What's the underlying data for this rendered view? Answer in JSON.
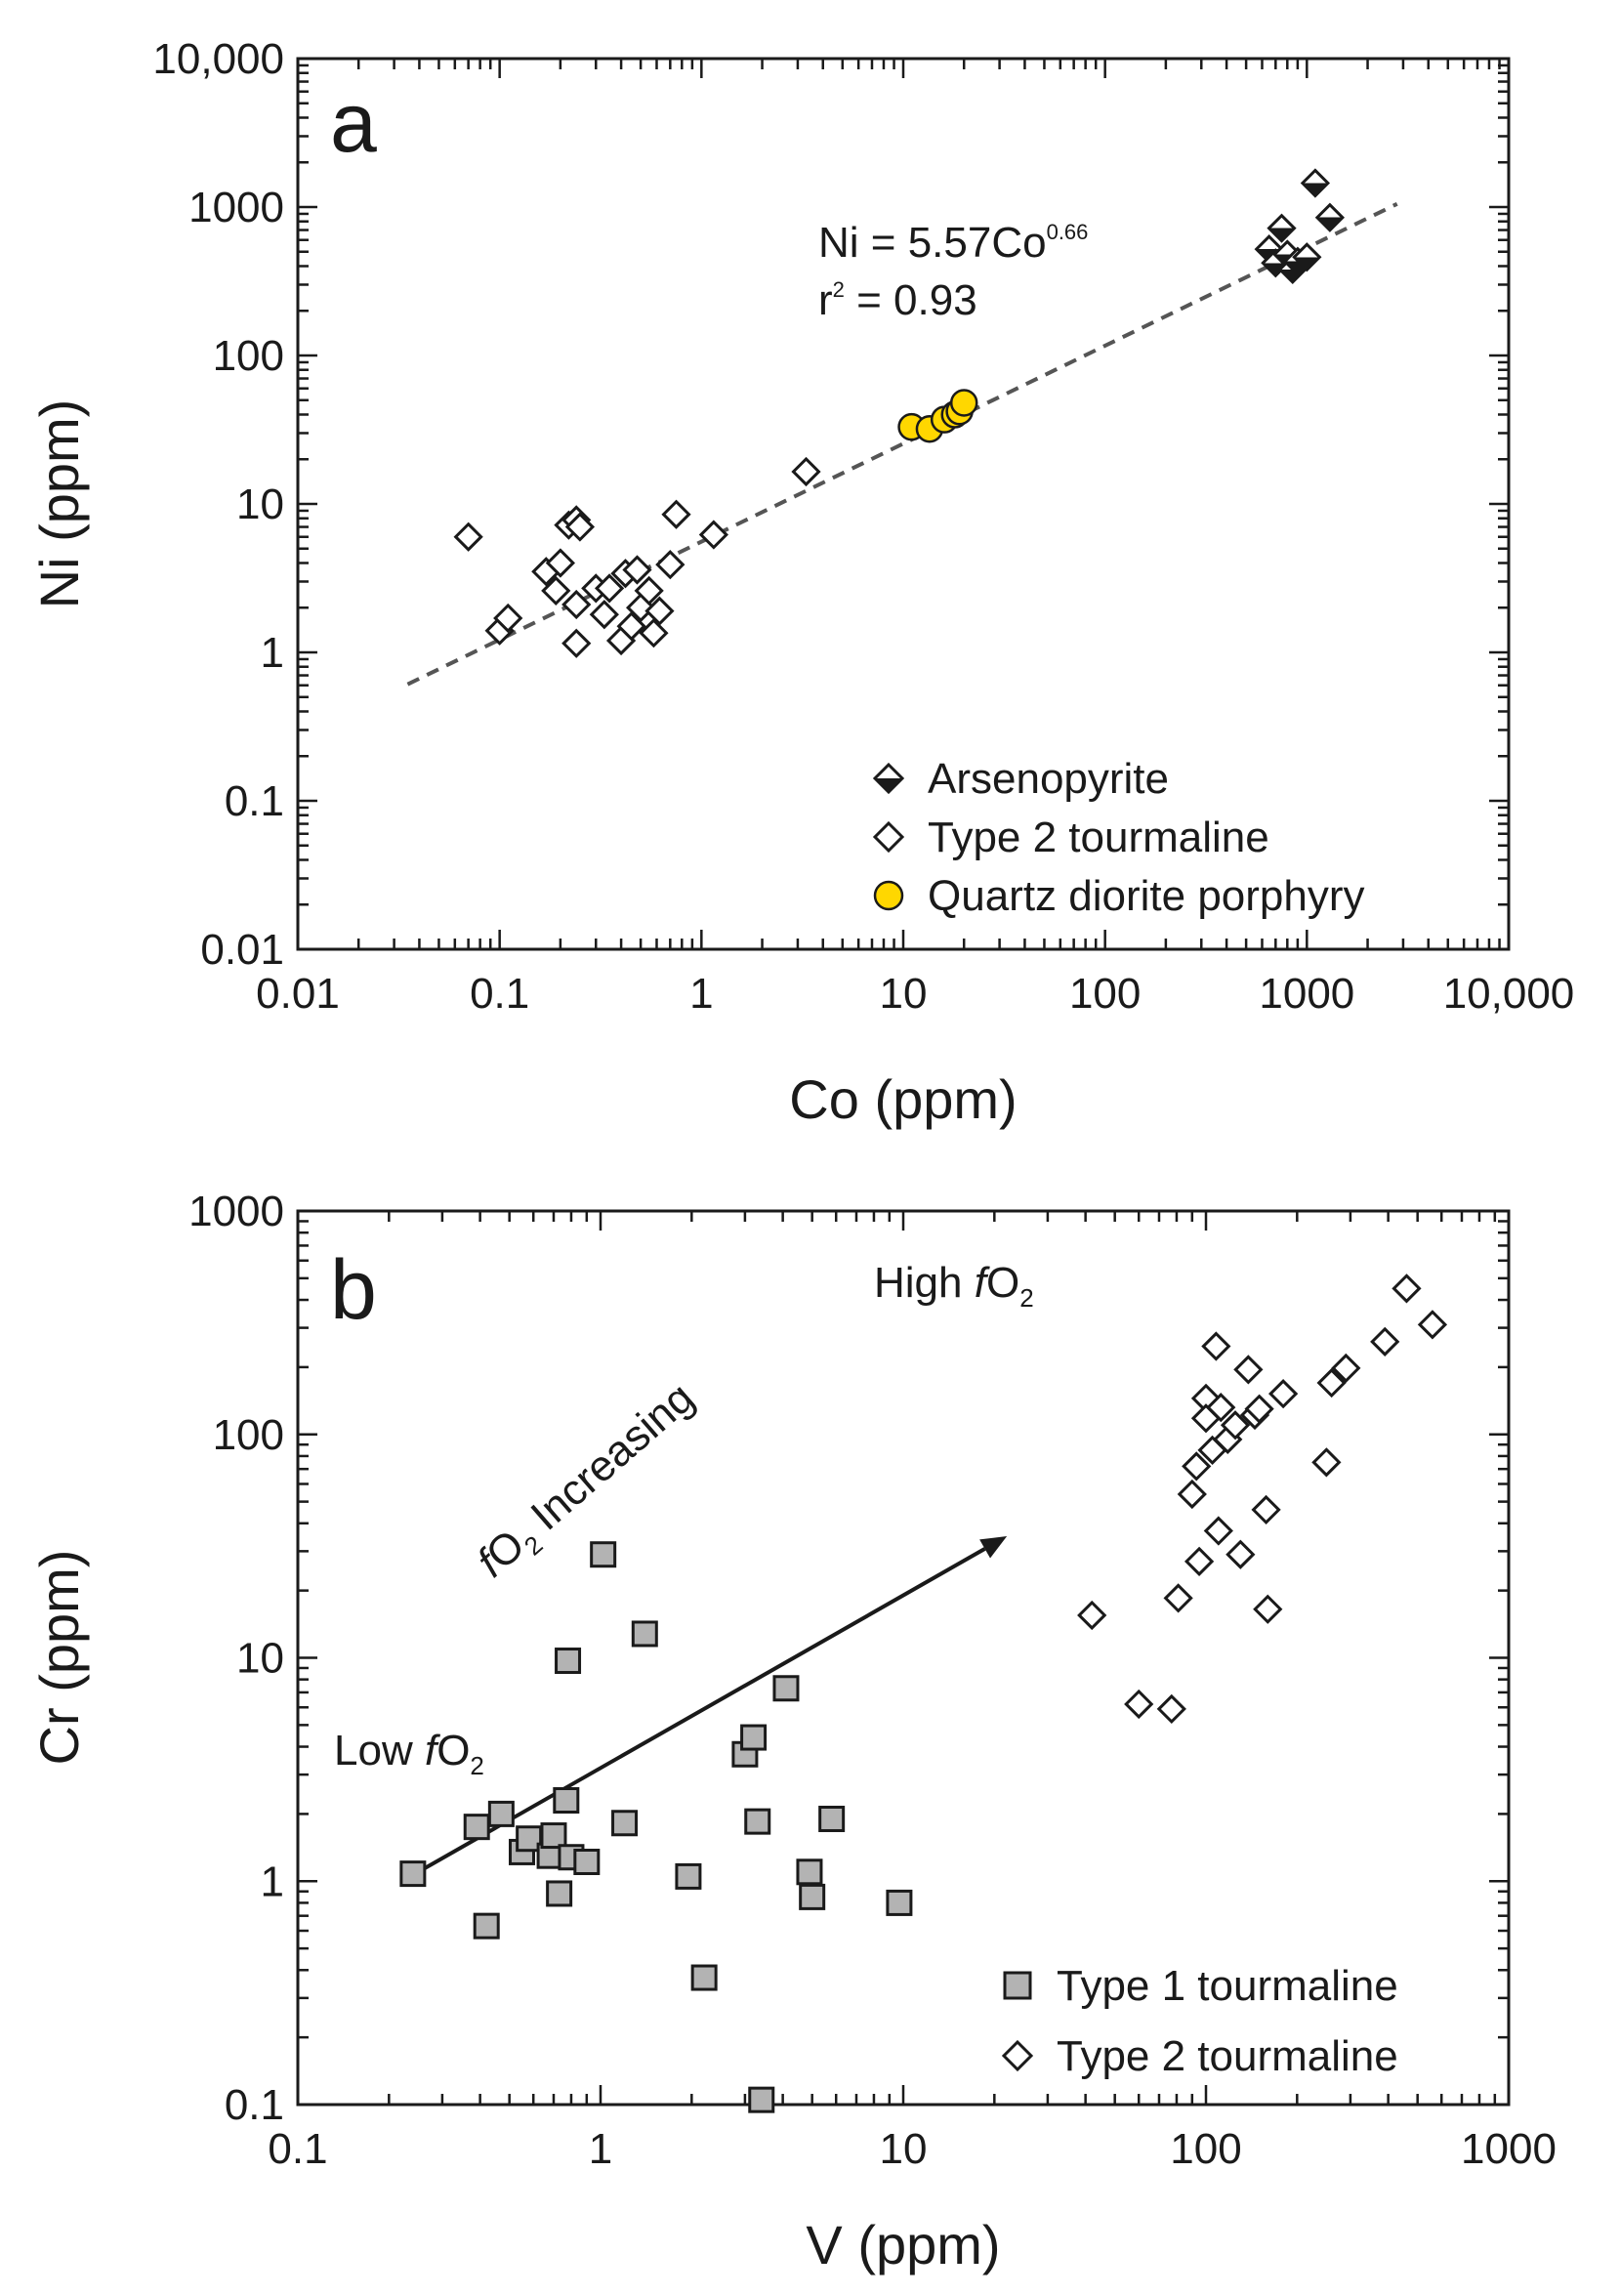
{
  "chart_data": [
    {
      "panel": "a",
      "type": "scatter",
      "xscale": "log",
      "yscale": "log",
      "xlabel": "Co (ppm)",
      "ylabel": "Ni (ppm)",
      "xlim": [
        0.01,
        10000
      ],
      "ylim": [
        0.01,
        10000
      ],
      "xticks": [
        0.01,
        0.1,
        1,
        10,
        100,
        1000,
        10000
      ],
      "xtick_labels": [
        "0.01",
        "0.1",
        "1",
        "10",
        "100",
        "1000",
        "10,000"
      ],
      "yticks": [
        0.01,
        0.1,
        1,
        10,
        100,
        1000,
        10000
      ],
      "ytick_labels": [
        "0.01",
        "0.1",
        "1",
        "10",
        "100",
        "1000",
        "10,000"
      ],
      "fit": {
        "equation_prefix": "Ni = 5.57Co",
        "exponent": "0.66",
        "r2_label": "r",
        "r2_sup": "2",
        "r2_value": " = 0.93",
        "a": 5.57,
        "b": 0.66,
        "x_range": [
          0.035,
          2800
        ]
      },
      "legend": {
        "position": "bottom-right",
        "entries": [
          {
            "label": "Arsenopyrite",
            "marker": "half-diamond"
          },
          {
            "label": "Type 2 tourmaline",
            "marker": "open-diamond"
          },
          {
            "label": "Quartz diorite porphyry",
            "marker": "yellow-circle"
          }
        ]
      },
      "series": [
        {
          "name": "Arsenopyrite",
          "marker": "half-diamond",
          "points": [
            [
              1100,
              1450
            ],
            [
              1300,
              850
            ],
            [
              750,
              720
            ],
            [
              650,
              520
            ],
            [
              700,
              420
            ],
            [
              800,
              480
            ],
            [
              850,
              380
            ],
            [
              900,
              430
            ],
            [
              1000,
              460
            ]
          ]
        },
        {
          "name": "Type 2 tourmaline",
          "marker": "open-diamond",
          "points": [
            [
              0.07,
              6
            ],
            [
              0.1,
              1.4
            ],
            [
              0.11,
              1.7
            ],
            [
              0.17,
              3.5
            ],
            [
              0.19,
              2.6
            ],
            [
              0.2,
              4
            ],
            [
              0.22,
              7.2
            ],
            [
              0.24,
              7.8
            ],
            [
              0.25,
              7
            ],
            [
              0.24,
              2.1
            ],
            [
              0.24,
              1.15
            ],
            [
              0.3,
              2.7
            ],
            [
              0.33,
              1.8
            ],
            [
              0.35,
              2.7
            ],
            [
              0.4,
              1.2
            ],
            [
              0.42,
              3.4
            ],
            [
              0.45,
              1.5
            ],
            [
              0.48,
              3.6
            ],
            [
              0.5,
              2
            ],
            [
              0.55,
              2.6
            ],
            [
              0.58,
              1.35
            ],
            [
              0.62,
              1.9
            ],
            [
              0.7,
              3.9
            ],
            [
              0.75,
              8.5
            ],
            [
              1.15,
              6.2
            ],
            [
              3.3,
              16.5
            ]
          ]
        },
        {
          "name": "Quartz diorite porphyry",
          "marker": "yellow-circle",
          "points": [
            [
              11,
              33
            ],
            [
              13.5,
              32
            ],
            [
              16,
              37
            ],
            [
              18,
              40
            ],
            [
              19,
              42
            ],
            [
              20,
              48
            ]
          ]
        }
      ]
    },
    {
      "panel": "b",
      "type": "scatter",
      "xscale": "log",
      "yscale": "log",
      "xlabel": "V (ppm)",
      "ylabel": "Cr (ppm)",
      "xlim": [
        0.1,
        1000
      ],
      "ylim": [
        0.1,
        1000
      ],
      "xticks": [
        0.1,
        1,
        10,
        100,
        1000
      ],
      "xtick_labels": [
        "0.1",
        "1",
        "10",
        "100",
        "1000"
      ],
      "yticks": [
        0.1,
        1,
        10,
        100,
        1000
      ],
      "ytick_labels": [
        "0.1",
        "1",
        "10",
        "100",
        "1000"
      ],
      "annotations": {
        "low": {
          "prefix": "Low ",
          "f": "f",
          "o": "O",
          "sub": "2"
        },
        "high": {
          "prefix": "High ",
          "f": "f",
          "o": "O",
          "sub": "2"
        },
        "increasing": {
          "f": "f",
          "o": "O",
          "sub": "2",
          "suffix": " Increasing"
        },
        "arrow_from": [
          0.25,
          1.1
        ],
        "arrow_to": [
          22,
          35
        ]
      },
      "legend": {
        "position": "bottom-right",
        "entries": [
          {
            "label": "Type 1 tourmaline",
            "marker": "gray-square"
          },
          {
            "label": "Type 2 tourmaline",
            "marker": "open-diamond"
          }
        ]
      },
      "series": [
        {
          "name": "Type 1 tourmaline",
          "marker": "gray-square",
          "points": [
            [
              0.24,
              1.08
            ],
            [
              0.39,
              1.75
            ],
            [
              0.42,
              0.63
            ],
            [
              0.47,
              2
            ],
            [
              0.55,
              1.35
            ],
            [
              0.58,
              1.55
            ],
            [
              0.68,
              1.3
            ],
            [
              0.7,
              1.6
            ],
            [
              0.73,
              0.88
            ],
            [
              0.77,
              2.3
            ],
            [
              0.78,
              9.7
            ],
            [
              0.8,
              1.28
            ],
            [
              0.9,
              1.22
            ],
            [
              1.02,
              29
            ],
            [
              1.2,
              1.82
            ],
            [
              1.4,
              12.8
            ],
            [
              1.95,
              1.05
            ],
            [
              2.2,
              0.37
            ],
            [
              3,
              3.7
            ],
            [
              3.2,
              4.4
            ],
            [
              3.3,
              1.85
            ],
            [
              3.4,
              0.105
            ],
            [
              4.1,
              7.3
            ],
            [
              4.9,
              1.1
            ],
            [
              5,
              0.85
            ],
            [
              5.8,
              1.9
            ],
            [
              9.7,
              0.8
            ]
          ]
        },
        {
          "name": "Type 2 tourmaline",
          "marker": "open-diamond",
          "points": [
            [
              42,
              15.5
            ],
            [
              60,
              6.2
            ],
            [
              77,
              5.9
            ],
            [
              81,
              18.5
            ],
            [
              90,
              54
            ],
            [
              93,
              72
            ],
            [
              95,
              27
            ],
            [
              100,
              145
            ],
            [
              100,
              118
            ],
            [
              105,
              85
            ],
            [
              108,
              248
            ],
            [
              110,
              37
            ],
            [
              112,
              132
            ],
            [
              118,
              95
            ],
            [
              125,
              110
            ],
            [
              130,
              29
            ],
            [
              138,
              195
            ],
            [
              145,
              122
            ],
            [
              150,
              130
            ],
            [
              158,
              46
            ],
            [
              160,
              16.5
            ],
            [
              180,
              152
            ],
            [
              250,
              75
            ],
            [
              260,
              170
            ],
            [
              290,
              198
            ],
            [
              390,
              260
            ],
            [
              460,
              450
            ],
            [
              560,
              310
            ]
          ]
        }
      ]
    }
  ]
}
